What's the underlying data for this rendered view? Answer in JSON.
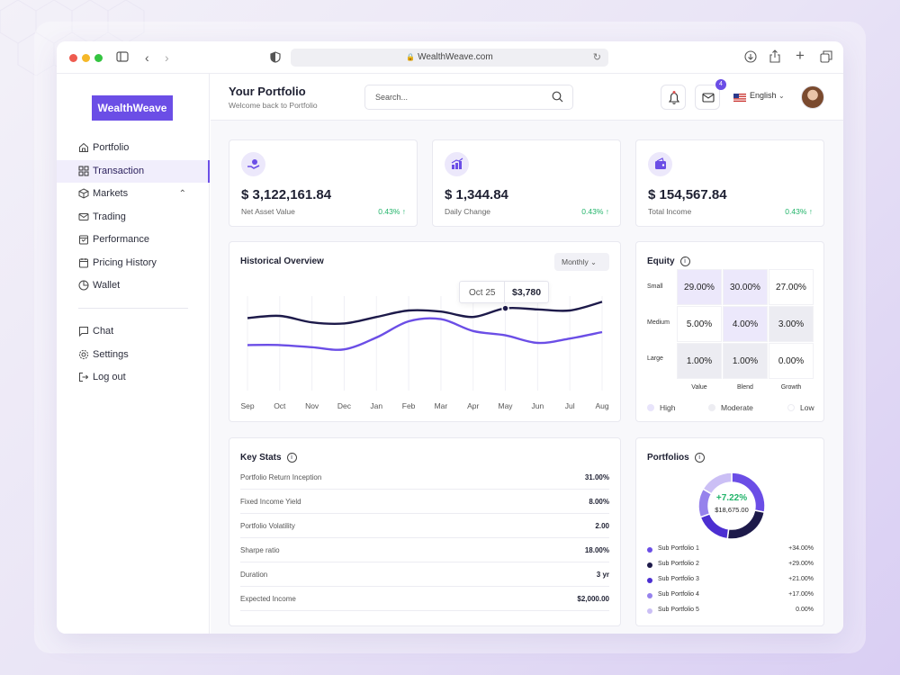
{
  "browser": {
    "url": "WealthWeave.com"
  },
  "app": {
    "logo": "WealthWeave"
  },
  "sidebar": {
    "items": [
      {
        "label": "Portfolio",
        "icon": "home-icon"
      },
      {
        "label": "Transaction",
        "icon": "grid-icon",
        "active": true
      },
      {
        "label": "Markets",
        "icon": "cube-icon",
        "expanded": true
      },
      {
        "label": "Trading",
        "icon": "mail-icon"
      },
      {
        "label": "Performance",
        "icon": "calendar-check-icon"
      },
      {
        "label": "Pricing History",
        "icon": "calendar-icon"
      },
      {
        "label": "Wallet",
        "icon": "pie-icon"
      }
    ],
    "bottom_items": [
      {
        "label": "Chat",
        "icon": "chat-icon"
      },
      {
        "label": "Settings",
        "icon": "gear-icon"
      },
      {
        "label": "Log out",
        "icon": "logout-icon"
      }
    ]
  },
  "header": {
    "title": "Your Portfolio",
    "subtitle": "Welcome back to Portfolio",
    "search_placeholder": "Search...",
    "mail_badge": "4",
    "language": "English"
  },
  "kpis": [
    {
      "value": "$ 3,122,161.84",
      "label": "Net Asset Value",
      "change": "0.43% ↑"
    },
    {
      "value": "$ 1,344.84",
      "label": "Daily Change",
      "change": "0.43% ↑"
    },
    {
      "value": "$ 154,567.84",
      "label": "Total Income",
      "change": "0.43% ↑"
    }
  ],
  "overview": {
    "title": "Historical Overview",
    "period": "Monthly",
    "tooltip_date": "Oct 25",
    "tooltip_value": "$3,780"
  },
  "chart_data": {
    "type": "line",
    "x": [
      "Sep",
      "Oct",
      "Nov",
      "Dec",
      "Jan",
      "Feb",
      "Mar",
      "Apr",
      "May",
      "Jun",
      "Jul",
      "Aug"
    ],
    "series": [
      {
        "values": [
          63,
          65,
          59,
          58,
          64,
          70,
          69,
          64,
          72,
          71,
          70,
          78
        ]
      },
      {
        "values": [
          38,
          38,
          36,
          34,
          45,
          60,
          62,
          51,
          47,
          40,
          44,
          50
        ]
      }
    ],
    "colors": [
      "#1d1a4a",
      "#6b4ee6"
    ]
  },
  "equity": {
    "title": "Equity",
    "rows": [
      "Small",
      "Medium",
      "Large"
    ],
    "cols": [
      "Value",
      "Blend",
      "Growth"
    ],
    "cells": [
      [
        "29.00%",
        "30.00%",
        "27.00%"
      ],
      [
        "5.00%",
        "4.00%",
        "3.00%"
      ],
      [
        "1.00%",
        "1.00%",
        "0.00%"
      ]
    ],
    "legend": [
      "High",
      "Moderate",
      "Low"
    ]
  },
  "key_stats": {
    "title": "Key Stats",
    "rows": [
      {
        "k": "Portfolio Return Inception",
        "v": "31.00%"
      },
      {
        "k": "Fixed Income Yield",
        "v": "8.00%"
      },
      {
        "k": "Portfolio Volatility",
        "v": "2.00"
      },
      {
        "k": "Sharpe ratio",
        "v": "18.00%"
      },
      {
        "k": "Duration",
        "v": "3 yr"
      },
      {
        "k": "Expected Income",
        "v": "$2,000.00"
      }
    ]
  },
  "portfolios": {
    "title": "Portfolios",
    "center_pct": "+7.22%",
    "center_value": "$18,675.00",
    "items": [
      {
        "name": "Sub Portfolio 1",
        "value": "+34.00%",
        "color": "#6b4ee6"
      },
      {
        "name": "Sub Portfolio 2",
        "value": "+29.00%",
        "color": "#1d1a4a"
      },
      {
        "name": "Sub Portfolio 3",
        "value": "+21.00%",
        "color": "#4c2fd1"
      },
      {
        "name": "Sub Portfolio 4",
        "value": "+17.00%",
        "color": "#9682ec"
      },
      {
        "name": "Sub Portfolio 5",
        "value": "0.00%",
        "color": "#cbbff5"
      }
    ]
  }
}
